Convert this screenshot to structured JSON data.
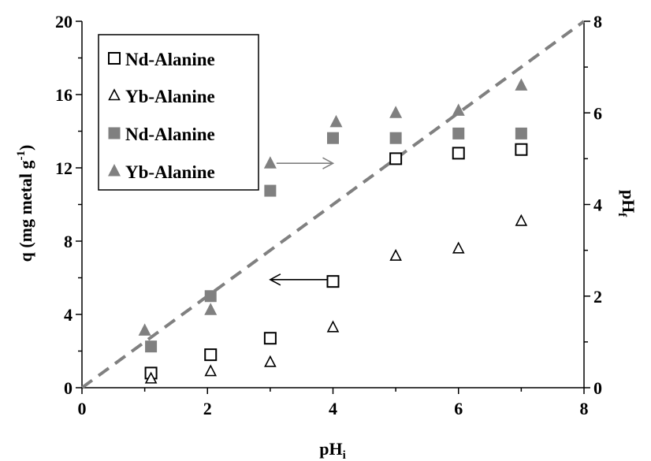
{
  "chart_data": {
    "type": "scatter",
    "x_axis": {
      "label": "pH",
      "label_subscript": "i",
      "range": [
        0,
        8
      ],
      "ticks": [
        "0",
        "2",
        "4",
        "6",
        "8"
      ]
    },
    "y_axis_left": {
      "label_main": "q (mg metal g",
      "label_sup": "-1",
      "label_end": ")",
      "range": [
        0,
        20
      ],
      "ticks": [
        "0",
        "4",
        "8",
        "12",
        "16",
        "20"
      ]
    },
    "y_axis_right": {
      "label": "pH",
      "label_subscript": "f",
      "range": [
        0,
        8
      ],
      "ticks": [
        "0",
        "2",
        "4",
        "6",
        "8"
      ]
    },
    "series": [
      {
        "name": "Nd-Alanine",
        "marker": "square-open",
        "color": "#000000",
        "axis": "left",
        "x": [
          1.1,
          2.05,
          3.0,
          4.0,
          5.0,
          6.0,
          7.0
        ],
        "y": [
          0.8,
          1.8,
          2.7,
          5.8,
          12.5,
          12.8,
          13.0
        ]
      },
      {
        "name": "Yb-Alanine",
        "marker": "triangle-open",
        "color": "#000000",
        "axis": "left",
        "x": [
          1.1,
          2.05,
          3.0,
          4.0,
          5.0,
          6.0,
          7.0
        ],
        "y": [
          0.5,
          0.9,
          1.4,
          3.3,
          7.2,
          7.6,
          9.1
        ]
      },
      {
        "name": "Nd-Alanine",
        "marker": "square-filled",
        "color": "#808080",
        "axis": "right",
        "x": [
          1.1,
          2.05,
          3.0,
          4.0,
          5.0,
          6.0,
          7.0
        ],
        "y": [
          0.9,
          2.0,
          4.3,
          5.45,
          5.45,
          5.55,
          5.55
        ]
      },
      {
        "name": "Yb-Alanine",
        "marker": "triangle-filled",
        "color": "#808080",
        "axis": "right",
        "x": [
          1.0,
          2.05,
          3.0,
          4.05,
          5.0,
          6.0,
          7.0
        ],
        "y": [
          1.25,
          1.7,
          4.9,
          5.8,
          6.0,
          6.05,
          6.6
        ]
      }
    ],
    "reference_line": {
      "style": "dashed",
      "color": "#808080",
      "x": [
        0,
        8
      ],
      "y": [
        0,
        8
      ],
      "axis": "right"
    },
    "arrows": [
      {
        "from": [
          4.0,
          5.9
        ],
        "to": [
          3.0,
          5.9
        ],
        "axis": "left",
        "color": "#000000"
      },
      {
        "from": [
          3.1,
          4.9
        ],
        "to": [
          4.0,
          4.9
        ],
        "axis": "right",
        "color": "#808080"
      }
    ],
    "legend": {
      "position": "top-left",
      "entries": [
        "Nd-Alanine",
        "Yb-Alanine",
        "Nd-Alanine",
        "Yb-Alanine"
      ]
    },
    "grid": false
  }
}
